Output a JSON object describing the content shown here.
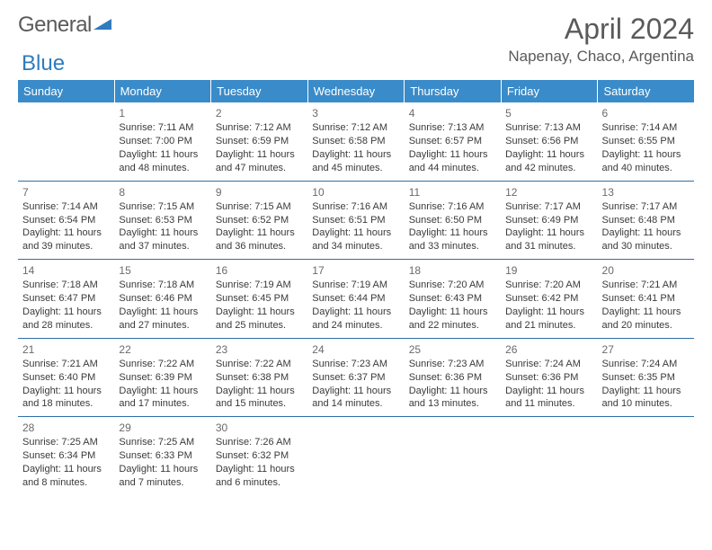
{
  "colors": {
    "header_bg": "#3a8bc9",
    "header_text": "#ffffff",
    "week_border": "#2f6fa8",
    "body_text": "#3a3a3a",
    "daynum_text": "#6a6a6a",
    "title_text": "#5a5a5a",
    "logo_blue": "#2f7bbf",
    "page_bg": "#ffffff"
  },
  "logo": {
    "text1": "General",
    "text2": "Blue"
  },
  "title": "April 2024",
  "location": "Napenay, Chaco, Argentina",
  "day_headers": [
    "Sunday",
    "Monday",
    "Tuesday",
    "Wednesday",
    "Thursday",
    "Friday",
    "Saturday"
  ],
  "weeks": [
    [
      {
        "empty": true
      },
      {
        "day": "1",
        "sunrise": "Sunrise: 7:11 AM",
        "sunset": "Sunset: 7:00 PM",
        "dl1": "Daylight: 11 hours",
        "dl2": "and 48 minutes."
      },
      {
        "day": "2",
        "sunrise": "Sunrise: 7:12 AM",
        "sunset": "Sunset: 6:59 PM",
        "dl1": "Daylight: 11 hours",
        "dl2": "and 47 minutes."
      },
      {
        "day": "3",
        "sunrise": "Sunrise: 7:12 AM",
        "sunset": "Sunset: 6:58 PM",
        "dl1": "Daylight: 11 hours",
        "dl2": "and 45 minutes."
      },
      {
        "day": "4",
        "sunrise": "Sunrise: 7:13 AM",
        "sunset": "Sunset: 6:57 PM",
        "dl1": "Daylight: 11 hours",
        "dl2": "and 44 minutes."
      },
      {
        "day": "5",
        "sunrise": "Sunrise: 7:13 AM",
        "sunset": "Sunset: 6:56 PM",
        "dl1": "Daylight: 11 hours",
        "dl2": "and 42 minutes."
      },
      {
        "day": "6",
        "sunrise": "Sunrise: 7:14 AM",
        "sunset": "Sunset: 6:55 PM",
        "dl1": "Daylight: 11 hours",
        "dl2": "and 40 minutes."
      }
    ],
    [
      {
        "day": "7",
        "sunrise": "Sunrise: 7:14 AM",
        "sunset": "Sunset: 6:54 PM",
        "dl1": "Daylight: 11 hours",
        "dl2": "and 39 minutes."
      },
      {
        "day": "8",
        "sunrise": "Sunrise: 7:15 AM",
        "sunset": "Sunset: 6:53 PM",
        "dl1": "Daylight: 11 hours",
        "dl2": "and 37 minutes."
      },
      {
        "day": "9",
        "sunrise": "Sunrise: 7:15 AM",
        "sunset": "Sunset: 6:52 PM",
        "dl1": "Daylight: 11 hours",
        "dl2": "and 36 minutes."
      },
      {
        "day": "10",
        "sunrise": "Sunrise: 7:16 AM",
        "sunset": "Sunset: 6:51 PM",
        "dl1": "Daylight: 11 hours",
        "dl2": "and 34 minutes."
      },
      {
        "day": "11",
        "sunrise": "Sunrise: 7:16 AM",
        "sunset": "Sunset: 6:50 PM",
        "dl1": "Daylight: 11 hours",
        "dl2": "and 33 minutes."
      },
      {
        "day": "12",
        "sunrise": "Sunrise: 7:17 AM",
        "sunset": "Sunset: 6:49 PM",
        "dl1": "Daylight: 11 hours",
        "dl2": "and 31 minutes."
      },
      {
        "day": "13",
        "sunrise": "Sunrise: 7:17 AM",
        "sunset": "Sunset: 6:48 PM",
        "dl1": "Daylight: 11 hours",
        "dl2": "and 30 minutes."
      }
    ],
    [
      {
        "day": "14",
        "sunrise": "Sunrise: 7:18 AM",
        "sunset": "Sunset: 6:47 PM",
        "dl1": "Daylight: 11 hours",
        "dl2": "and 28 minutes."
      },
      {
        "day": "15",
        "sunrise": "Sunrise: 7:18 AM",
        "sunset": "Sunset: 6:46 PM",
        "dl1": "Daylight: 11 hours",
        "dl2": "and 27 minutes."
      },
      {
        "day": "16",
        "sunrise": "Sunrise: 7:19 AM",
        "sunset": "Sunset: 6:45 PM",
        "dl1": "Daylight: 11 hours",
        "dl2": "and 25 minutes."
      },
      {
        "day": "17",
        "sunrise": "Sunrise: 7:19 AM",
        "sunset": "Sunset: 6:44 PM",
        "dl1": "Daylight: 11 hours",
        "dl2": "and 24 minutes."
      },
      {
        "day": "18",
        "sunrise": "Sunrise: 7:20 AM",
        "sunset": "Sunset: 6:43 PM",
        "dl1": "Daylight: 11 hours",
        "dl2": "and 22 minutes."
      },
      {
        "day": "19",
        "sunrise": "Sunrise: 7:20 AM",
        "sunset": "Sunset: 6:42 PM",
        "dl1": "Daylight: 11 hours",
        "dl2": "and 21 minutes."
      },
      {
        "day": "20",
        "sunrise": "Sunrise: 7:21 AM",
        "sunset": "Sunset: 6:41 PM",
        "dl1": "Daylight: 11 hours",
        "dl2": "and 20 minutes."
      }
    ],
    [
      {
        "day": "21",
        "sunrise": "Sunrise: 7:21 AM",
        "sunset": "Sunset: 6:40 PM",
        "dl1": "Daylight: 11 hours",
        "dl2": "and 18 minutes."
      },
      {
        "day": "22",
        "sunrise": "Sunrise: 7:22 AM",
        "sunset": "Sunset: 6:39 PM",
        "dl1": "Daylight: 11 hours",
        "dl2": "and 17 minutes."
      },
      {
        "day": "23",
        "sunrise": "Sunrise: 7:22 AM",
        "sunset": "Sunset: 6:38 PM",
        "dl1": "Daylight: 11 hours",
        "dl2": "and 15 minutes."
      },
      {
        "day": "24",
        "sunrise": "Sunrise: 7:23 AM",
        "sunset": "Sunset: 6:37 PM",
        "dl1": "Daylight: 11 hours",
        "dl2": "and 14 minutes."
      },
      {
        "day": "25",
        "sunrise": "Sunrise: 7:23 AM",
        "sunset": "Sunset: 6:36 PM",
        "dl1": "Daylight: 11 hours",
        "dl2": "and 13 minutes."
      },
      {
        "day": "26",
        "sunrise": "Sunrise: 7:24 AM",
        "sunset": "Sunset: 6:36 PM",
        "dl1": "Daylight: 11 hours",
        "dl2": "and 11 minutes."
      },
      {
        "day": "27",
        "sunrise": "Sunrise: 7:24 AM",
        "sunset": "Sunset: 6:35 PM",
        "dl1": "Daylight: 11 hours",
        "dl2": "and 10 minutes."
      }
    ],
    [
      {
        "day": "28",
        "sunrise": "Sunrise: 7:25 AM",
        "sunset": "Sunset: 6:34 PM",
        "dl1": "Daylight: 11 hours",
        "dl2": "and 8 minutes."
      },
      {
        "day": "29",
        "sunrise": "Sunrise: 7:25 AM",
        "sunset": "Sunset: 6:33 PM",
        "dl1": "Daylight: 11 hours",
        "dl2": "and 7 minutes."
      },
      {
        "day": "30",
        "sunrise": "Sunrise: 7:26 AM",
        "sunset": "Sunset: 6:32 PM",
        "dl1": "Daylight: 11 hours",
        "dl2": "and 6 minutes."
      },
      {
        "empty": true
      },
      {
        "empty": true
      },
      {
        "empty": true
      },
      {
        "empty": true
      }
    ]
  ]
}
